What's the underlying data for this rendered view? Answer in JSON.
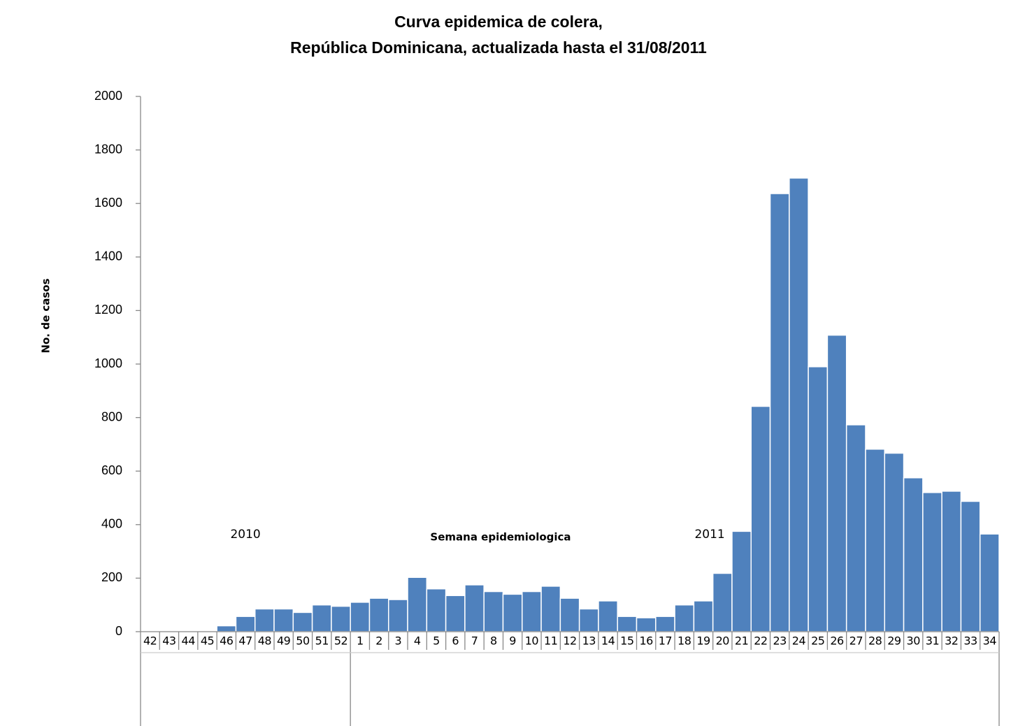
{
  "chart_data": {
    "type": "bar",
    "title": [
      "Curva epidemica de colera,",
      "República Dominicana, actualizada hasta el  31/08/2011"
    ],
    "y_label": "No. de casos",
    "x_label": "Semana epidemiologica",
    "year_labels": [
      "2010",
      "2011"
    ],
    "categories": [
      "42",
      "43",
      "44",
      "45",
      "46",
      "47",
      "48",
      "49",
      "50",
      "51",
      "52",
      "1",
      "2",
      "3",
      "4",
      "5",
      "6",
      "7",
      "8",
      "9",
      "10",
      "11",
      "12",
      "13",
      "14",
      "15",
      "16",
      "17",
      "18",
      "19",
      "20",
      "21",
      "22",
      "23",
      "24",
      "25",
      "26",
      "27",
      "28",
      "29",
      "30",
      "31",
      "32",
      "33",
      "34"
    ],
    "values": [
      0,
      0,
      0,
      0,
      22,
      57,
      85,
      85,
      72,
      100,
      95,
      110,
      125,
      120,
      203,
      160,
      135,
      175,
      150,
      140,
      150,
      170,
      125,
      85,
      115,
      57,
      52,
      57,
      100,
      115,
      218,
      375,
      842,
      1637,
      1695,
      990,
      1108,
      773,
      682,
      667,
      575,
      520,
      525,
      487,
      365
    ],
    "color": "#4f81bd",
    "ylim": [
      0,
      2000
    ],
    "yticks": [
      0,
      200,
      400,
      600,
      800,
      1000,
      1200,
      1400,
      1600,
      1800,
      2000
    ]
  }
}
